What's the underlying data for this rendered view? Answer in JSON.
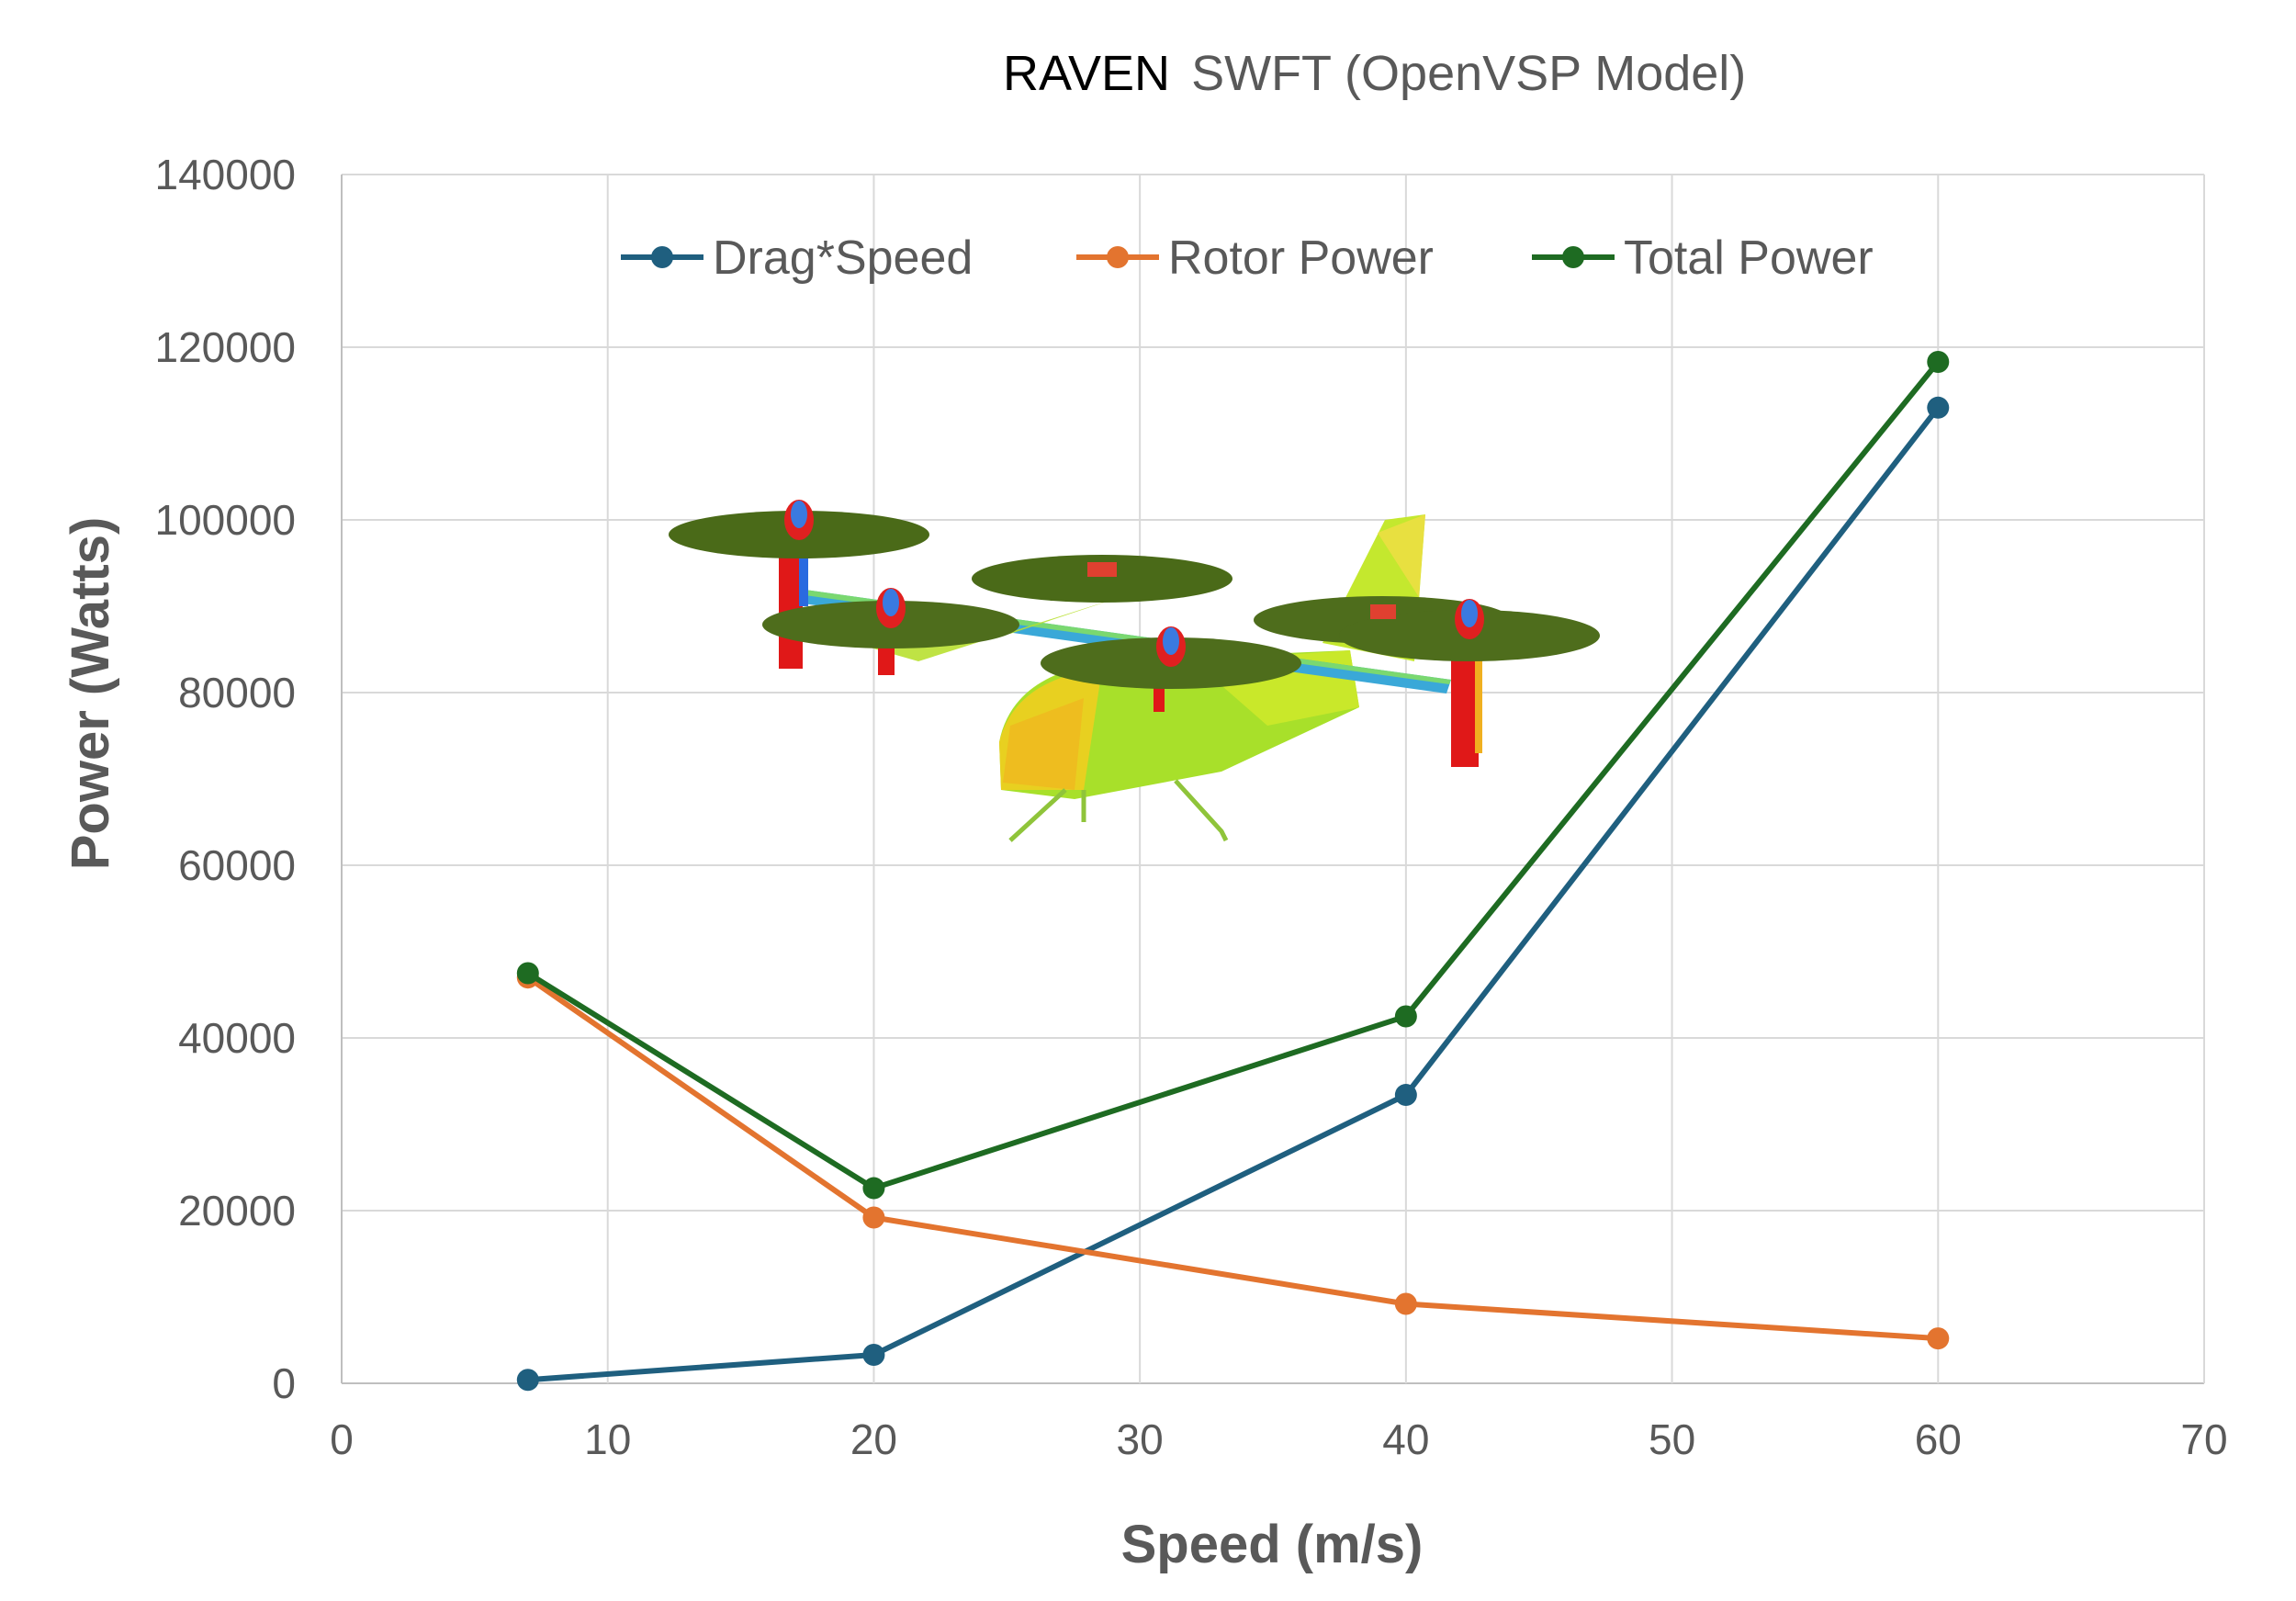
{
  "chart_data": {
    "type": "line",
    "title_part1": "RAVEN",
    "title_part2": "SWFT (OpenVSP Model)",
    "xlabel": "Speed (m/s)",
    "ylabel": "Power (Watts)",
    "xlim": [
      0,
      70
    ],
    "ylim": [
      0,
      140000
    ],
    "x_ticks": [
      "0",
      "10",
      "20",
      "30",
      "40",
      "50",
      "60",
      "70"
    ],
    "y_ticks": [
      "0",
      "20000",
      "40000",
      "60000",
      "80000",
      "100000",
      "120000",
      "140000"
    ],
    "grid": true,
    "legend_position": "top",
    "x": [
      7,
      20,
      40,
      60
    ],
    "series": [
      {
        "name": "Drag*Speed",
        "color": "#1f5f7f",
        "values": [
          400,
          3300,
          33400,
          113000
        ]
      },
      {
        "name": "Rotor Power",
        "color": "#e3742f",
        "values": [
          47000,
          19200,
          9200,
          5200
        ]
      },
      {
        "name": "Total Power",
        "color": "#1e6b22",
        "values": [
          47500,
          22600,
          42500,
          118300
        ]
      }
    ],
    "inset_image": "vtol-aircraft-render"
  }
}
